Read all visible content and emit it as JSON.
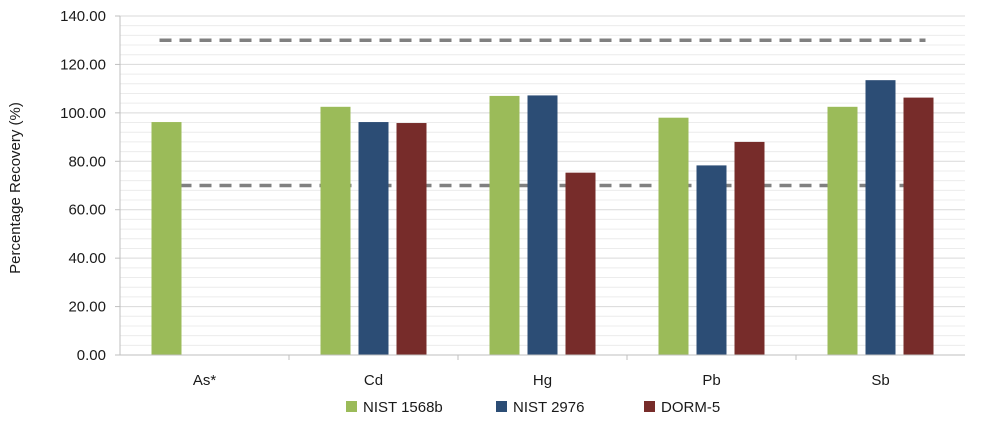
{
  "chart_data": {
    "type": "bar",
    "title": "",
    "xlabel": "",
    "ylabel": "Percentage Recovery (%)",
    "ylim": [
      0,
      140
    ],
    "yticks": [
      "0.00",
      "20.00",
      "40.00",
      "60.00",
      "80.00",
      "100.00",
      "120.00",
      "140.00"
    ],
    "grid": true,
    "legend_position": "bottom",
    "categories": [
      "As*",
      "Cd",
      "Hg",
      "Pb",
      "Sb"
    ],
    "series": [
      {
        "name": "NIST 1568b",
        "color": "#9bbb59",
        "values": [
          96.2,
          102.5,
          107.0,
          98.0,
          102.5
        ]
      },
      {
        "name": "NIST 2976",
        "color": "#2c4d75",
        "values": [
          null,
          96.2,
          107.2,
          78.3,
          113.5
        ]
      },
      {
        "name": "DORM-5",
        "color": "#772c2a",
        "values": [
          null,
          95.8,
          75.3,
          88.0,
          106.3
        ]
      }
    ],
    "reference_lines": [
      {
        "y": 130,
        "color": "#808080",
        "style": "dashed"
      },
      {
        "y": 70,
        "color": "#808080",
        "style": "dashed"
      }
    ]
  }
}
